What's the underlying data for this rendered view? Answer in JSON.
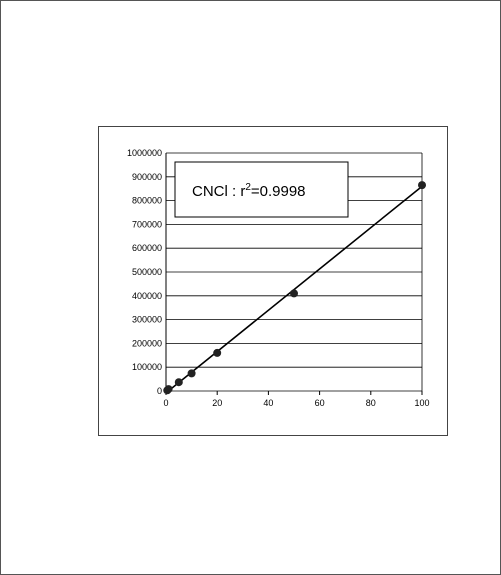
{
  "chart_data": {
    "type": "scatter",
    "title": "",
    "xlabel": "",
    "ylabel": "",
    "xlim": [
      0,
      100
    ],
    "ylim": [
      0,
      1000000
    ],
    "x_ticks": [
      0,
      20,
      40,
      60,
      80,
      100
    ],
    "y_ticks": [
      0,
      100000,
      200000,
      300000,
      400000,
      500000,
      600000,
      700000,
      800000,
      900000,
      1000000
    ],
    "grid": "horizontal",
    "points": [
      {
        "x": 0.5,
        "y": 3000
      },
      {
        "x": 1,
        "y": 8000
      },
      {
        "x": 5,
        "y": 37000
      },
      {
        "x": 10,
        "y": 74000
      },
      {
        "x": 20,
        "y": 160000
      },
      {
        "x": 50,
        "y": 410000
      },
      {
        "x": 100,
        "y": 865000
      }
    ],
    "fit_line": {
      "x": [
        0,
        100
      ],
      "y": [
        -8000,
        860000
      ]
    },
    "annotation": {
      "prefix": "CNCl : r",
      "superscript": "2",
      "suffix": "=0.9998"
    }
  },
  "colors": {
    "line": "#000000",
    "marker": "#222222",
    "grid": "#000000"
  }
}
